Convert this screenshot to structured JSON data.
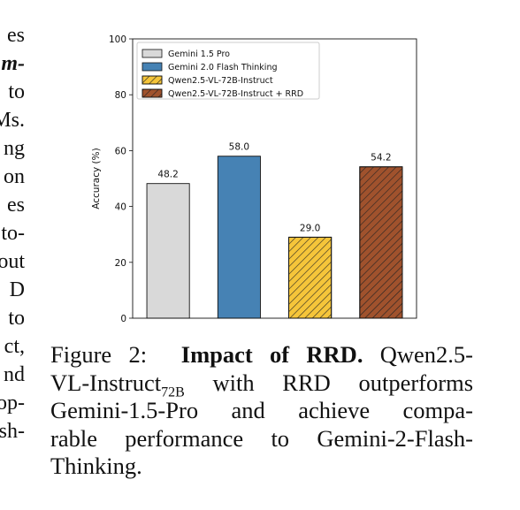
{
  "margin_text": [
    "es",
    "m-",
    "to",
    "Ms.",
    "ng",
    "on",
    "es",
    "to-",
    "out",
    "D",
    "to",
    "ct,",
    "nd",
    "op-",
    "sh-"
  ],
  "chart_data": {
    "type": "bar",
    "y_label": "Accuracy (%)",
    "ylim": [
      0,
      100
    ],
    "yticks": [
      0,
      20,
      40,
      60,
      80,
      100
    ],
    "grid": false,
    "legend": "upper left",
    "series": [
      {
        "name": "Gemini 1.5 Pro",
        "color": "#d9d9d9",
        "hatch": false,
        "values": [
          48.2
        ]
      },
      {
        "name": "Gemini 2.0 Flash Thinking",
        "color": "#4682b4",
        "hatch": false,
        "values": [
          58.0
        ],
        "value_labels": [
          "58.0"
        ]
      },
      {
        "name": "Qwen2.5-VL-72B-Instruct",
        "color": "#f5c53a",
        "hatch": true,
        "values": [
          29.0
        ],
        "value_labels": [
          "29.0"
        ]
      },
      {
        "name": "Qwen2.5-VL-72B-Instruct + RRD",
        "color": "#a0522d",
        "hatch": true,
        "values": [
          54.2
        ]
      }
    ]
  },
  "caption": {
    "label": "Figure 2:",
    "title": "Impact of RRD.",
    "line1": "Qwen2.5-",
    "line2": "VL-Instruct",
    "subscript": "72B",
    "line2_rest": "with RRD outperforms",
    "line3": "Gemini-1.5-Pro and achieve compa-",
    "line4": "rable performance to Gemini-2-Flash-",
    "line5": "Thinking."
  }
}
